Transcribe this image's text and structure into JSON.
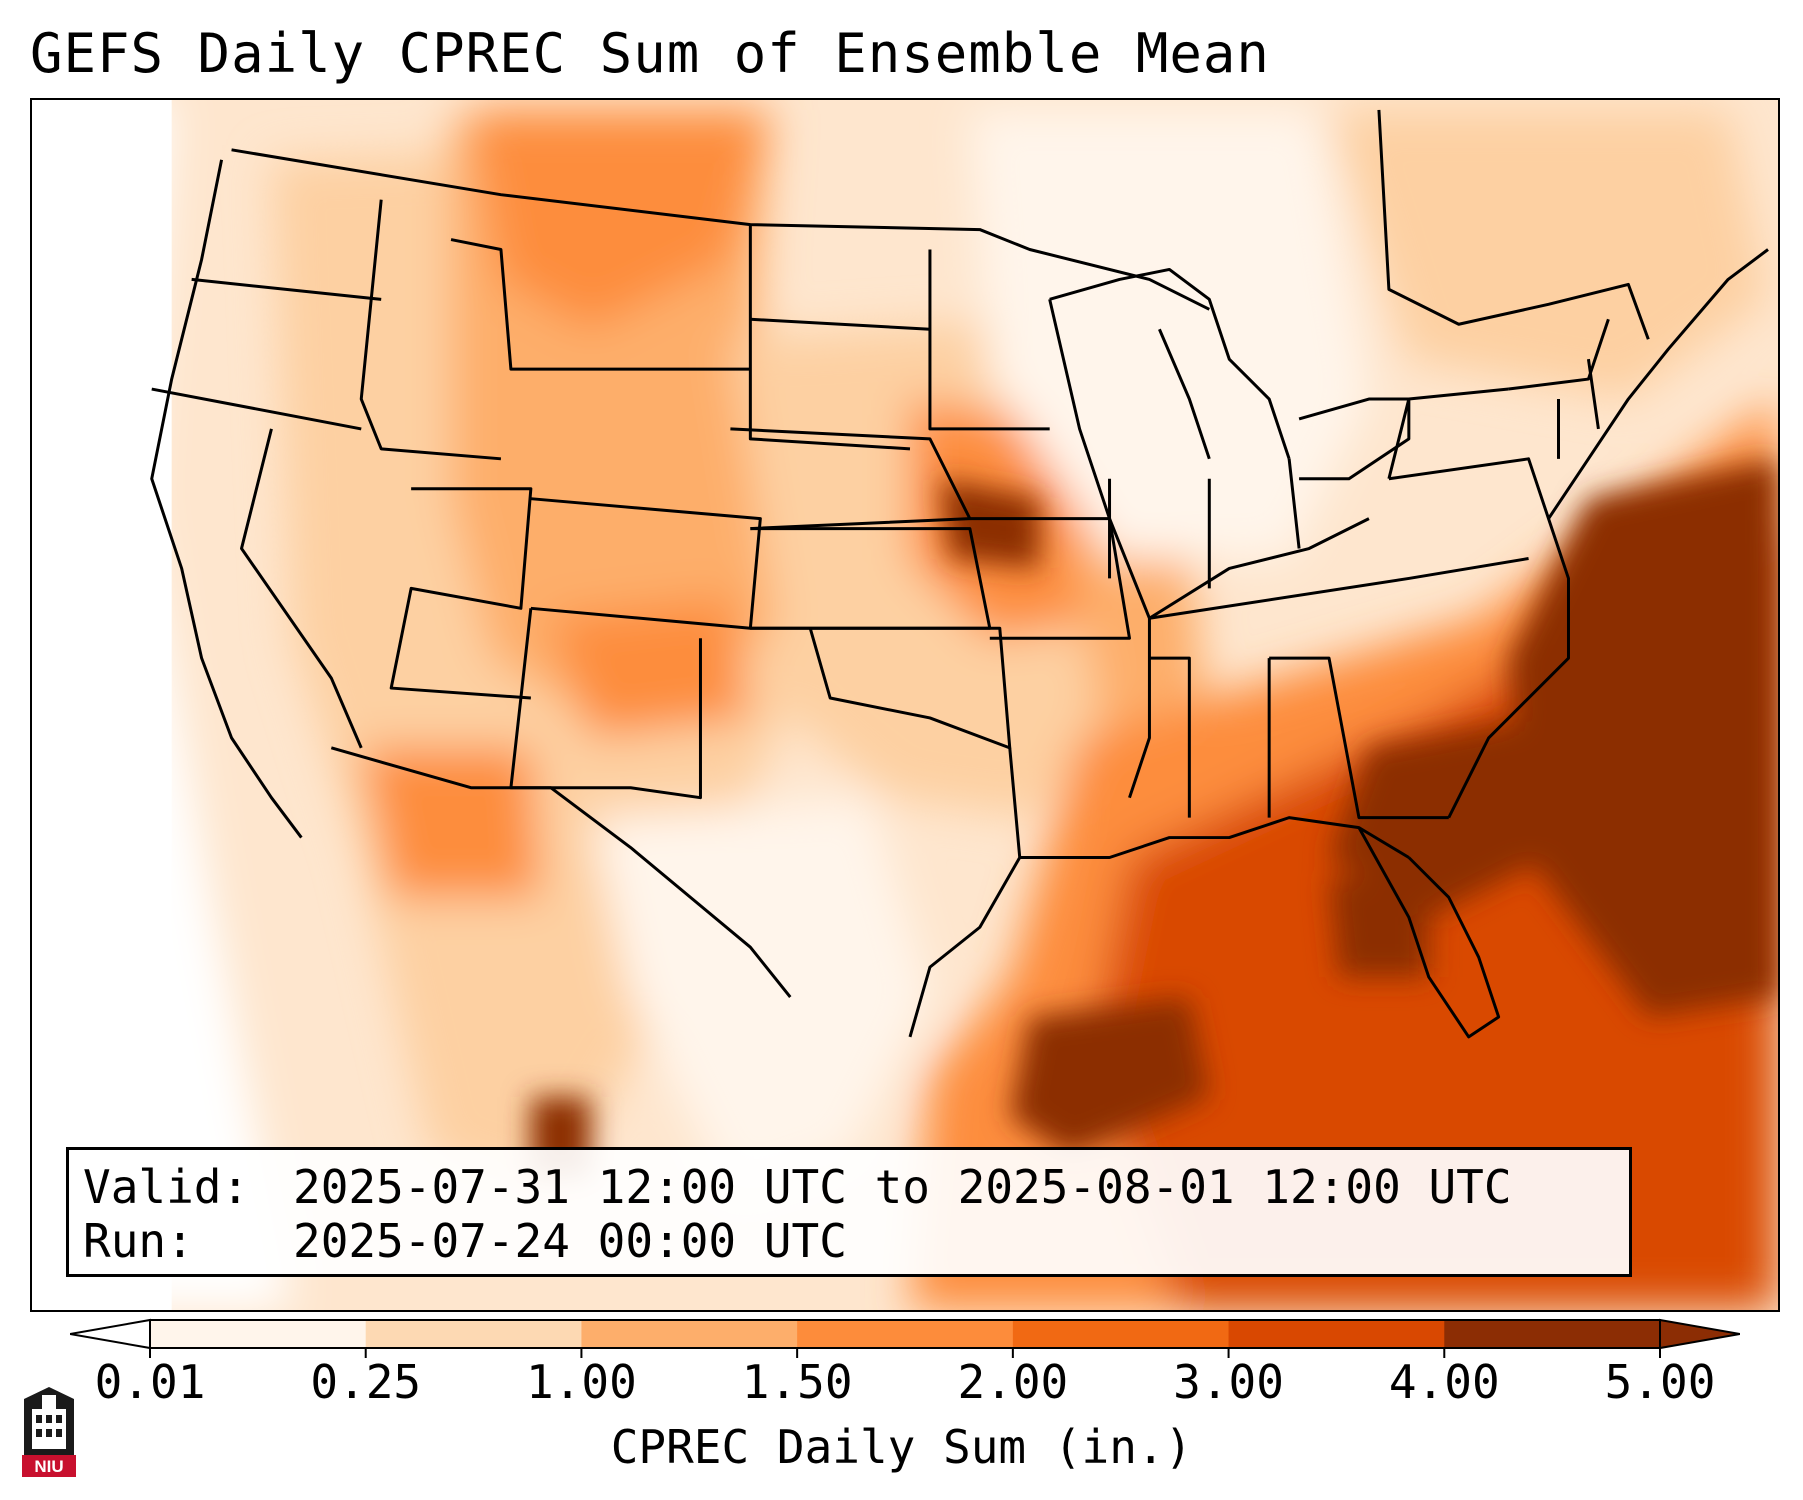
{
  "title": "GEFS Daily CPREC Sum of Ensemble Mean",
  "valid_label": "Valid:",
  "valid_value": "2025-07-31 12:00 UTC to 2025-08-01 12:00 UTC",
  "run_label": "Run:",
  "run_value": "2025-07-24 00:00 UTC",
  "colorbar": {
    "label": "CPREC Daily Sum (in.)",
    "ticks": [
      "0.01",
      "0.25",
      "1.00",
      "1.50",
      "2.00",
      "3.00",
      "4.00",
      "5.00"
    ],
    "colors": [
      "#fff5eb",
      "#fdd9b3",
      "#fdae6b",
      "#fd8c3b",
      "#f16913",
      "#d94801",
      "#8c2d04"
    ],
    "extend": "both"
  },
  "map": {
    "region": "Contiguous United States",
    "colors": {
      "lightest": "#fff5eb",
      "light": "#fee6ce",
      "pale": "#fdd0a2",
      "medium": "#fdae6b",
      "orange": "#fd8d3c",
      "dark_orange": "#e6550d",
      "deep": "#d94801",
      "darkest": "#8c2d04"
    }
  },
  "logo": {
    "text": "NIU",
    "color": "#c8102e"
  }
}
